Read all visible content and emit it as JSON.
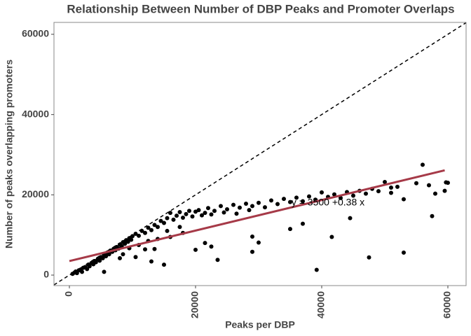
{
  "chart_data": {
    "type": "scatter",
    "title": "Relationship Between Number of DBP Peaks and Promoter Overlaps",
    "x_label": "Peaks per DBP",
    "y_label": "Number of peaks overlapping promoters",
    "xlim": [
      -2444,
      62889
    ],
    "ylim": [
      -2616,
      62965
    ],
    "xticks": [
      0,
      20000,
      40000,
      60000
    ],
    "yticks": [
      0,
      20000,
      40000,
      60000
    ],
    "points": {
      "color": "#000000",
      "x": [
        500,
        800,
        1000,
        1200,
        1500,
        1800,
        2000,
        2200,
        2500,
        2800,
        3000,
        3200,
        3500,
        3800,
        4000,
        4200,
        4500,
        4800,
        5000,
        5300,
        5500,
        5800,
        6000,
        6300,
        6500,
        6800,
        7000,
        7300,
        7500,
        7800,
        8000,
        8300,
        8500,
        8800,
        9000,
        9300,
        9500,
        9800,
        10000,
        10500,
        11000,
        11500,
        12000,
        12500,
        13000,
        13500,
        14000,
        14500,
        15000,
        15500,
        16000,
        16500,
        17000,
        17500,
        18000,
        18500,
        19000,
        19500,
        20000,
        20500,
        21000,
        21500,
        22000,
        22500,
        23000,
        24000,
        24500,
        25000,
        26000,
        26500,
        27000,
        28000,
        28500,
        29000,
        30000,
        31000,
        32000,
        33000,
        34000,
        35000,
        36000,
        37000,
        38000,
        39000,
        40000,
        41000,
        42000,
        43000,
        44000,
        45000,
        46000,
        47000,
        48000,
        49000,
        50000,
        51000,
        52000,
        11000,
        12500,
        14000,
        16000,
        18000,
        13500,
        15500,
        17500,
        9500,
        8500,
        39200,
        47500,
        53000,
        57500,
        41600,
        44500,
        35000,
        37000,
        29000,
        30000,
        29000,
        21500,
        23500,
        20000,
        22500,
        15000,
        13000,
        12000,
        10500,
        8000,
        5500,
        59700,
        59500,
        58000,
        55000,
        51000,
        53000,
        57000,
        60000,
        56000
      ],
      "y": [
        300,
        600,
        900,
        500,
        1200,
        1400,
        800,
        1800,
        2000,
        1500,
        2600,
        2200,
        3000,
        2700,
        3500,
        3200,
        4000,
        3600,
        4500,
        4200,
        5000,
        4700,
        5600,
        5200,
        6100,
        5800,
        6500,
        6200,
        7000,
        6600,
        7600,
        7200,
        8200,
        7800,
        8700,
        8300,
        9200,
        8800,
        9700,
        10300,
        9800,
        11000,
        10500,
        11800,
        11200,
        12500,
        12000,
        13500,
        13000,
        14200,
        15500,
        13800,
        14800,
        15700,
        14300,
        15200,
        16000,
        14600,
        15800,
        16200,
        14900,
        15500,
        16700,
        15100,
        16000,
        17200,
        15600,
        16400,
        17500,
        15300,
        16800,
        17800,
        16200,
        17200,
        18000,
        16900,
        18600,
        17700,
        19000,
        18200,
        19300,
        18400,
        19600,
        18800,
        20600,
        19500,
        20100,
        19200,
        20700,
        19800,
        21000,
        20300,
        21500,
        20900,
        23200,
        21800,
        22000,
        7500,
        8500,
        9000,
        9500,
        10500,
        6500,
        11000,
        12000,
        6700,
        5200,
        1300,
        4400,
        5600,
        14700,
        9500,
        14200,
        11500,
        12800,
        5800,
        8100,
        9600,
        8000,
        3800,
        6300,
        7100,
        2600,
        3400,
        6400,
        4500,
        4200,
        800,
        23100,
        21000,
        20300,
        22900,
        20500,
        18900,
        22400,
        23000,
        27500
      ]
    },
    "trend": {
      "color": "#a63a48",
      "intercept": 3500,
      "slope": 0.38,
      "x": [
        0,
        59500
      ]
    },
    "trend_label": {
      "text": "y = 3500 +0.38 x",
      "x": 41000,
      "y": 18000
    },
    "reference_line": {
      "intercept": 0,
      "slope": 1,
      "color": "#000000"
    }
  }
}
